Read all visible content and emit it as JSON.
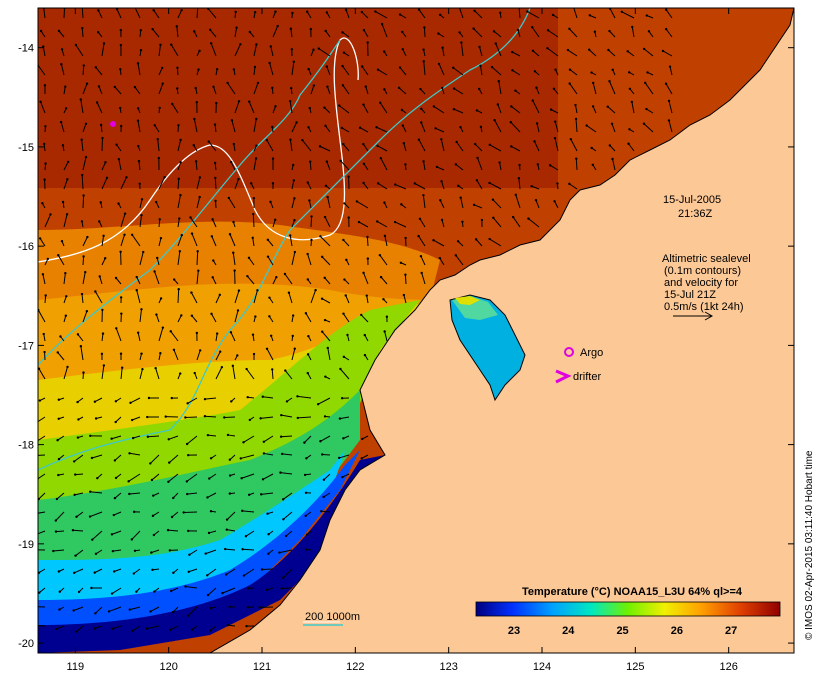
{
  "map": {
    "lon_range": [
      118.6,
      126.7
    ],
    "lat_range": [
      -20.1,
      -13.6
    ],
    "lon_ticks": [
      "119",
      "120",
      "121",
      "122",
      "123",
      "124",
      "125",
      "126"
    ],
    "lat_ticks": [
      "-14",
      "-15",
      "-16",
      "-17",
      "-18",
      "-19",
      "-20"
    ],
    "land_color": "#fcc896",
    "sst_colors": [
      "#000080",
      "#0050ff",
      "#00c8ff",
      "#30e0a0",
      "#90e000",
      "#ffe000",
      "#ffa000",
      "#e05000",
      "#a00000"
    ]
  },
  "annotations": {
    "date": "15-Jul-2005",
    "time": "21:36Z",
    "legend_lines": [
      "Altimetric sealevel",
      "(0.1m contours)",
      "and velocity for",
      "15-Jul 21Z",
      "0.5m/s (1kt 24h)"
    ],
    "argo_label": "Argo",
    "drifter_label": "drifter",
    "argo_color": "#e000e0",
    "isobath_label": "200  1000m",
    "isobath_200_color": "#ffffff",
    "isobath_1000_color": "#40c8c8"
  },
  "colorbar": {
    "title": "Temperature (°C) NOAA15_L3U 64% ql>=4",
    "ticks": [
      "23",
      "24",
      "25",
      "26",
      "27"
    ],
    "range": [
      22.3,
      27.9
    ]
  },
  "credit": "© IMOS 02-Apr-2015 03:11:40 Hobart time"
}
